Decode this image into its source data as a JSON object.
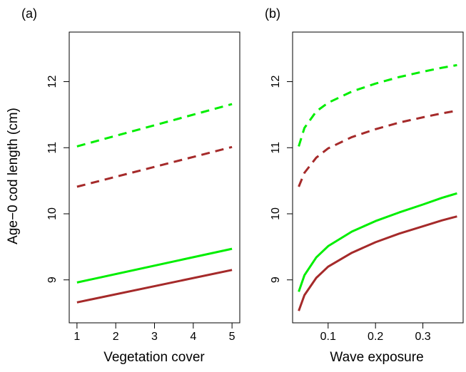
{
  "ylabel": "Age−0 cod length (cm)",
  "chart_data": [
    {
      "type": "line",
      "panel_label": "(a)",
      "xlabel": "Vegetation cover",
      "xlim": [
        0.8,
        5.2
      ],
      "ylim": [
        8.35,
        12.75
      ],
      "x_ticks": [
        1,
        2,
        3,
        4,
        5
      ],
      "x_tick_labels": [
        "1",
        "2",
        "3",
        "4",
        "5"
      ],
      "y_ticks": [
        9,
        10,
        11,
        12
      ],
      "y_tick_labels": [
        "9",
        "10",
        "11",
        "12"
      ],
      "series": [
        {
          "color": "#00ee00",
          "dash": "dashed",
          "x": [
            1,
            5
          ],
          "y": [
            11.02,
            11.66
          ]
        },
        {
          "color": "#a52a2a",
          "dash": "dashed",
          "x": [
            1,
            5
          ],
          "y": [
            10.41,
            11.01
          ]
        },
        {
          "color": "#00ee00",
          "dash": "solid",
          "x": [
            1,
            5
          ],
          "y": [
            8.96,
            9.47
          ]
        },
        {
          "color": "#a52a2a",
          "dash": "solid",
          "x": [
            1,
            5
          ],
          "y": [
            8.66,
            9.15
          ]
        }
      ]
    },
    {
      "type": "line",
      "panel_label": "(b)",
      "xlabel": "Wave exposure",
      "xlim": [
        0.025,
        0.385
      ],
      "ylim": [
        8.35,
        12.75
      ],
      "x_ticks": [
        0.1,
        0.2,
        0.3
      ],
      "x_tick_labels": [
        "0.1",
        "0.2",
        "0.3"
      ],
      "y_ticks": [
        9,
        10,
        11,
        12
      ],
      "y_tick_labels": [
        "9",
        "10",
        "11",
        "12"
      ],
      "series": [
        {
          "color": "#00ee00",
          "dash": "dashed",
          "x": [
            0.038,
            0.05,
            0.075,
            0.1,
            0.15,
            0.2,
            0.25,
            0.3,
            0.34,
            0.372
          ],
          "y": [
            11.02,
            11.3,
            11.55,
            11.68,
            11.85,
            11.97,
            12.07,
            12.15,
            12.21,
            12.25
          ]
        },
        {
          "color": "#a52a2a",
          "dash": "dashed",
          "x": [
            0.038,
            0.05,
            0.075,
            0.1,
            0.15,
            0.2,
            0.25,
            0.3,
            0.34,
            0.372
          ],
          "y": [
            10.41,
            10.62,
            10.85,
            10.99,
            11.16,
            11.28,
            11.38,
            11.46,
            11.52,
            11.56
          ]
        },
        {
          "color": "#00ee00",
          "dash": "solid",
          "x": [
            0.038,
            0.05,
            0.075,
            0.1,
            0.15,
            0.2,
            0.25,
            0.3,
            0.34,
            0.372
          ],
          "y": [
            8.82,
            9.07,
            9.34,
            9.51,
            9.73,
            9.89,
            10.02,
            10.14,
            10.24,
            10.31
          ]
        },
        {
          "color": "#a52a2a",
          "dash": "solid",
          "x": [
            0.038,
            0.05,
            0.075,
            0.1,
            0.15,
            0.2,
            0.25,
            0.3,
            0.34,
            0.372
          ],
          "y": [
            8.53,
            8.77,
            9.03,
            9.2,
            9.41,
            9.57,
            9.7,
            9.81,
            9.9,
            9.96
          ]
        }
      ]
    }
  ]
}
